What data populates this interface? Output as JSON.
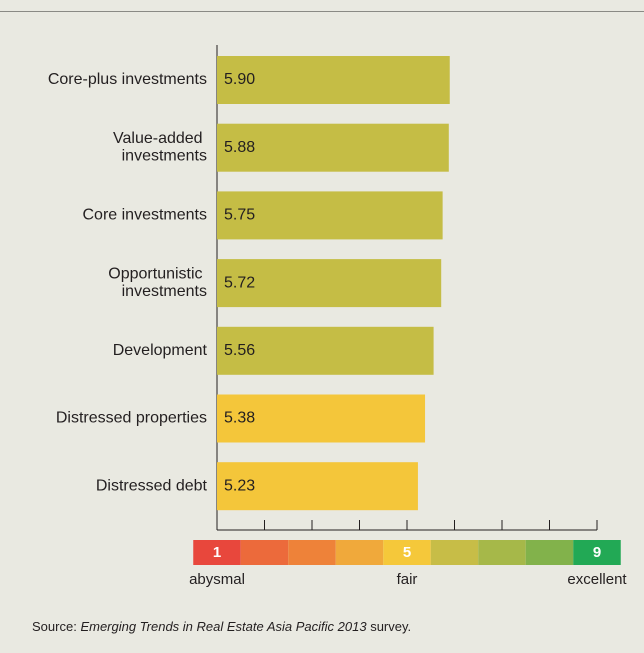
{
  "chart_data": {
    "type": "bar",
    "orientation": "horizontal",
    "categories": [
      "Core-plus investments",
      "Value-added investments",
      "Core investments",
      "Opportunistic investments",
      "Development",
      "Distressed properties",
      "Distressed debt"
    ],
    "values": [
      5.9,
      5.88,
      5.75,
      5.72,
      5.56,
      5.38,
      5.23
    ],
    "value_labels": [
      "5.90",
      "5.88",
      "5.75",
      "5.72",
      "5.56",
      "5.38",
      "5.23"
    ],
    "colors": [
      "#c5bd45",
      "#c5bd45",
      "#c5bd45",
      "#c5bd45",
      "#c5bd45",
      "#f4c63a",
      "#f4c63a"
    ],
    "xlim": [
      1,
      9
    ],
    "xticks": [
      1,
      2,
      3,
      4,
      5,
      6,
      7,
      8,
      9
    ],
    "scale": {
      "colors": [
        "#e8473c",
        "#ec6a3b",
        "#ee8239",
        "#f0a93b",
        "#f5c83a",
        "#c7bd47",
        "#a6b849",
        "#82b24b",
        "#22a955"
      ],
      "points": [
        {
          "value": 1,
          "name": "abysmal"
        },
        {
          "value": 5,
          "name": "fair"
        },
        {
          "value": 9,
          "name": "excellent"
        }
      ]
    },
    "source": {
      "prefix": "Source:",
      "title": "Emerging Trends in Real Estate Asia Pacific 2013",
      "suffix": "survey."
    }
  }
}
